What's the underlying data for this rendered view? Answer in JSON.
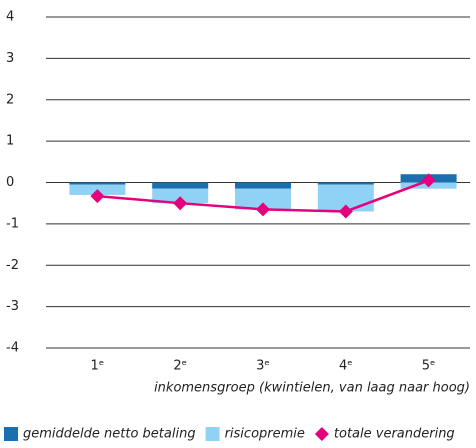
{
  "chart_data": {
    "type": "bar",
    "categories": [
      "1ᵉ",
      "2ᵉ",
      "3ᵉ",
      "4ᵉ",
      "5ᵉ"
    ],
    "series": [
      {
        "name": "gemiddelde netto betaling",
        "color": "#1b6fae",
        "values": [
          -0.05,
          -0.15,
          -0.15,
          -0.05,
          0.2
        ]
      },
      {
        "name": "risicopremie",
        "color": "#8fd2f6",
        "values": [
          -0.25,
          -0.35,
          -0.5,
          -0.65,
          -0.15
        ]
      },
      {
        "name": "totale verandering",
        "color": "#e5007d",
        "type": "line",
        "values": [
          -0.33,
          -0.5,
          -0.65,
          -0.7,
          0.05
        ]
      }
    ],
    "x_label": "inkomensgroep (kwintielen, van laag naar hoog)",
    "ylim": [
      -4,
      4
    ],
    "yticks": [
      -4,
      -3,
      -2,
      -1,
      0,
      1,
      2,
      3,
      4
    ],
    "grid": true
  }
}
